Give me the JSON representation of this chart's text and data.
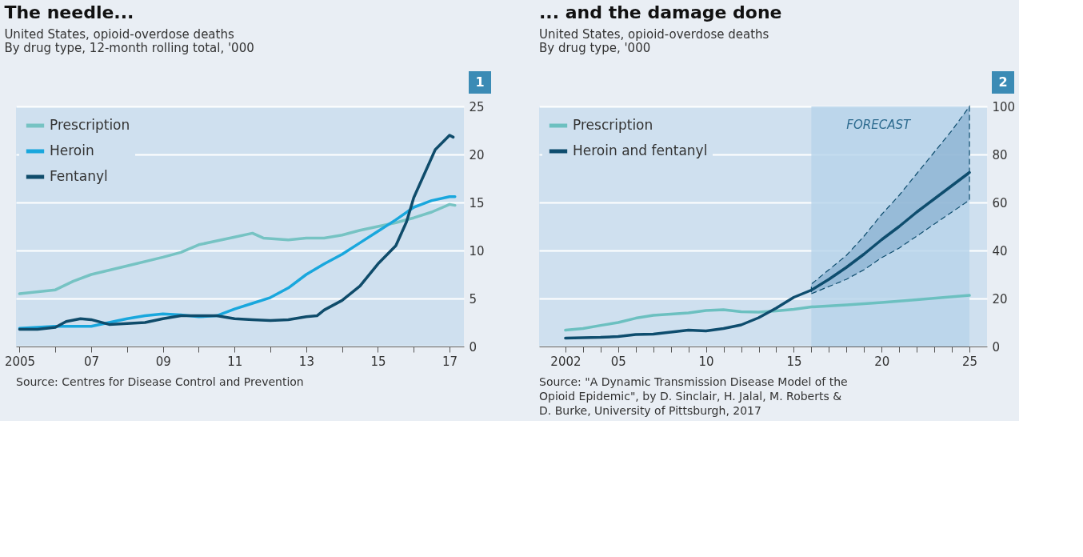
{
  "chart_data": [
    {
      "type": "line",
      "title": "The needle...",
      "subtitle": "United States, opioid-overdose deaths\nBy drug type, 12-month rolling total, '000",
      "annotations": [
        "1",
        "Source: Centres for Disease Control and Prevention"
      ],
      "xlim": [
        2004.9,
        2017.4
      ],
      "xticks": [
        {
          "value": 2005,
          "label": "2005"
        },
        {
          "value": 2006,
          "label": null
        },
        {
          "value": 2007,
          "label": "07"
        },
        {
          "value": 2008,
          "label": null
        },
        {
          "value": 2009,
          "label": "09"
        },
        {
          "value": 2010,
          "label": null
        },
        {
          "value": 2011,
          "label": "11"
        },
        {
          "value": 2012,
          "label": null
        },
        {
          "value": 2013,
          "label": "13"
        },
        {
          "value": 2014,
          "label": null
        },
        {
          "value": 2015,
          "label": "15"
        },
        {
          "value": 2016,
          "label": null
        },
        {
          "value": 2017,
          "label": "17"
        }
      ],
      "ylim": [
        0,
        25
      ],
      "yticks": [
        0,
        5,
        10,
        15,
        20,
        25
      ],
      "grid": "y",
      "legend": "top left",
      "line_style": "solid",
      "series": [
        {
          "name": "Prescription",
          "color": "#76c3c3",
          "x": [
            2005,
            2006,
            2006.5,
            2007,
            2008,
            2009,
            2009.5,
            2010,
            2010.5,
            2011,
            2011.5,
            2011.8,
            2012.5,
            2013,
            2013.5,
            2014,
            2014.5,
            2015,
            2015.5,
            2016,
            2016.5,
            2017,
            2017.15
          ],
          "values": [
            5.5,
            5.9,
            6.8,
            7.5,
            8.4,
            9.3,
            9.8,
            10.6,
            11.0,
            11.4,
            11.8,
            11.3,
            11.1,
            11.3,
            11.3,
            11.6,
            12.1,
            12.5,
            12.9,
            13.4,
            14.0,
            14.8,
            14.7
          ]
        },
        {
          "name": "Heroin",
          "color": "#19a7dd",
          "x": [
            2005,
            2006,
            2007,
            2007.5,
            2008,
            2008.5,
            2009,
            2009.5,
            2010,
            2010.5,
            2011,
            2011.5,
            2012,
            2012.5,
            2013,
            2013.5,
            2014,
            2014.5,
            2015,
            2015.5,
            2016,
            2016.5,
            2017,
            2017.15
          ],
          "values": [
            1.9,
            2.1,
            2.1,
            2.5,
            2.9,
            3.2,
            3.4,
            3.3,
            3.1,
            3.2,
            3.9,
            4.5,
            5.1,
            6.1,
            7.5,
            8.6,
            9.6,
            10.8,
            12.0,
            13.2,
            14.5,
            15.2,
            15.6,
            15.6
          ]
        },
        {
          "name": "Fentanyl",
          "color": "#0f4c6b",
          "x": [
            2005,
            2005.5,
            2006,
            2006.3,
            2006.7,
            2007,
            2007.5,
            2008,
            2008.5,
            2009,
            2009.5,
            2010,
            2010.5,
            2011,
            2011.5,
            2012,
            2012.5,
            2013,
            2013.3,
            2013.5,
            2014,
            2014.5,
            2015,
            2015.5,
            2015.8,
            2016,
            2016.3,
            2016.6,
            2017,
            2017.1
          ],
          "values": [
            1.8,
            1.8,
            2.0,
            2.6,
            2.9,
            2.8,
            2.3,
            2.4,
            2.5,
            2.9,
            3.2,
            3.2,
            3.2,
            2.9,
            2.8,
            2.7,
            2.8,
            3.1,
            3.2,
            3.8,
            4.8,
            6.3,
            8.6,
            10.5,
            13,
            15.5,
            18,
            20.5,
            22,
            21.8
          ]
        }
      ]
    },
    {
      "type": "line",
      "title": "... and the damage done",
      "subtitle": "United States, opioid-overdose deaths\nBy drug type, '000",
      "annotations": [
        "2",
        "Source: \"A Dynamic Transmission Disease Model of the\nOpioid Epidemic\", by D. Sinclair, H. Jalal, M. Roberts &\nD. Burke, University of Pittsburgh, 2017"
      ],
      "xlim": [
        2000.5,
        2026
      ],
      "xticks": [
        {
          "value": 2002,
          "label": "2002"
        },
        {
          "value": 2003,
          "label": null
        },
        {
          "value": 2004,
          "label": null
        },
        {
          "value": 2005,
          "label": "05"
        },
        {
          "value": 2006,
          "label": null
        },
        {
          "value": 2007,
          "label": null
        },
        {
          "value": 2008,
          "label": null
        },
        {
          "value": 2009,
          "label": null
        },
        {
          "value": 2010,
          "label": "10"
        },
        {
          "value": 2011,
          "label": null
        },
        {
          "value": 2012,
          "label": null
        },
        {
          "value": 2013,
          "label": null
        },
        {
          "value": 2014,
          "label": null
        },
        {
          "value": 2015,
          "label": "15"
        },
        {
          "value": 2016,
          "label": null
        },
        {
          "value": 2017,
          "label": null
        },
        {
          "value": 2018,
          "label": null
        },
        {
          "value": 2019,
          "label": null
        },
        {
          "value": 2020,
          "label": "20"
        },
        {
          "value": 2021,
          "label": null
        },
        {
          "value": 2022,
          "label": null
        },
        {
          "value": 2023,
          "label": null
        },
        {
          "value": 2024,
          "label": null
        },
        {
          "value": 2025,
          "label": "25"
        }
      ],
      "ylim": [
        0,
        100
      ],
      "yticks": [
        0,
        20,
        40,
        60,
        80,
        100
      ],
      "grid": "y",
      "legend": "top left",
      "line_style": "solid",
      "bands": [
        {
          "axis": "x",
          "from": 2016,
          "to": 2025,
          "label": "FORECAST",
          "color": "#b6d3ea"
        }
      ],
      "series": [
        {
          "name": "Prescription",
          "color": "#6cc0c0",
          "x": [
            2002,
            2003,
            2004,
            2005,
            2006,
            2007,
            2008,
            2009,
            2010,
            2011,
            2012,
            2013,
            2014,
            2015,
            2016,
            2018,
            2020,
            2022,
            2025
          ],
          "values": [
            6.8,
            7.5,
            8.8,
            10,
            11.8,
            13,
            13.5,
            14,
            15,
            15.3,
            14.5,
            14.3,
            14.8,
            15.5,
            16.5,
            17.3,
            18.3,
            19.5,
            21.3
          ]
        },
        {
          "name": "Heroin and fentanyl",
          "color": "#0e4d6e",
          "x": [
            2002,
            2004,
            2005,
            2006,
            2007,
            2008,
            2009,
            2010,
            2011,
            2012,
            2013,
            2014,
            2015,
            2016,
            2017,
            2018,
            2019,
            2020,
            2021,
            2022,
            2023,
            2024,
            2025
          ],
          "values": [
            3.5,
            3.8,
            4.2,
            5.0,
            5.2,
            6,
            6.8,
            6.5,
            7.5,
            9,
            12,
            16,
            20.5,
            23.5,
            28,
            33,
            38.5,
            44.5,
            50,
            56,
            61.5,
            67,
            72.5
          ],
          "lower": [
            null,
            null,
            null,
            null,
            null,
            null,
            null,
            null,
            null,
            null,
            null,
            null,
            null,
            22,
            25,
            28,
            32,
            37,
            41,
            46,
            51,
            56,
            61
          ],
          "upper": [
            null,
            null,
            null,
            null,
            null,
            null,
            null,
            null,
            null,
            null,
            null,
            null,
            null,
            26,
            32,
            38,
            46,
            55,
            63,
            72,
            81,
            90,
            100
          ]
        }
      ]
    }
  ]
}
